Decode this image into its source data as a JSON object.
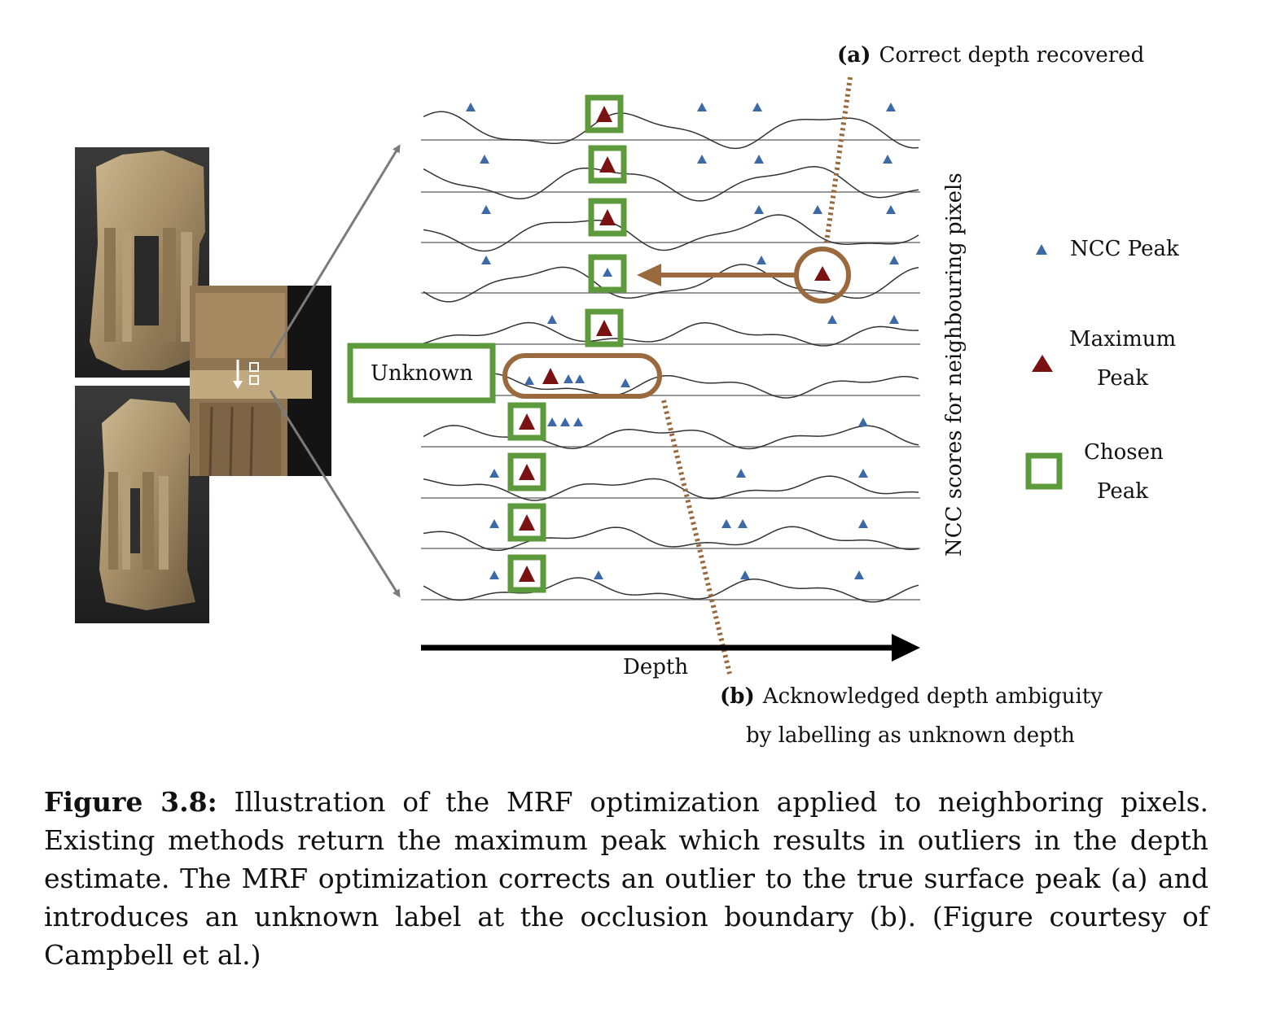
{
  "annotations": {
    "a_tag": "(a)",
    "a_text": "Correct depth recovered",
    "b_tag": "(b)",
    "b_text_line1": "Acknowledged depth ambiguity",
    "b_text_line2": "by labelling as unknown depth",
    "unknown": "Unknown"
  },
  "axes": {
    "x_label": "Depth",
    "y_label": "NCC scores for neighbouring pixels"
  },
  "legend": {
    "ncc_peak": "NCC Peak",
    "maximum_peak_line1": "Maximum",
    "maximum_peak_line2": "Peak",
    "chosen_peak_line1": "Chosen",
    "chosen_peak_line2": "Peak"
  },
  "colors": {
    "ncc_peak": "#3d6aa6",
    "maximum_peak": "#7a1212",
    "chosen_peak": "#5c9a3c",
    "annotation": "#9a6a3e",
    "curve": "#333333"
  },
  "caption": {
    "label": "Figure 3.8:",
    "text": " Illustration of the MRF optimization applied to neighboring pixels. Existing methods return the maximum peak which results in outliers in the depth estimate. The MRF optimization corrects an outlier to the true surface peak (a) and introduces an unknown label at the occlusion boundary (b). (Figure courtesy of Campbell et al.)"
  }
}
